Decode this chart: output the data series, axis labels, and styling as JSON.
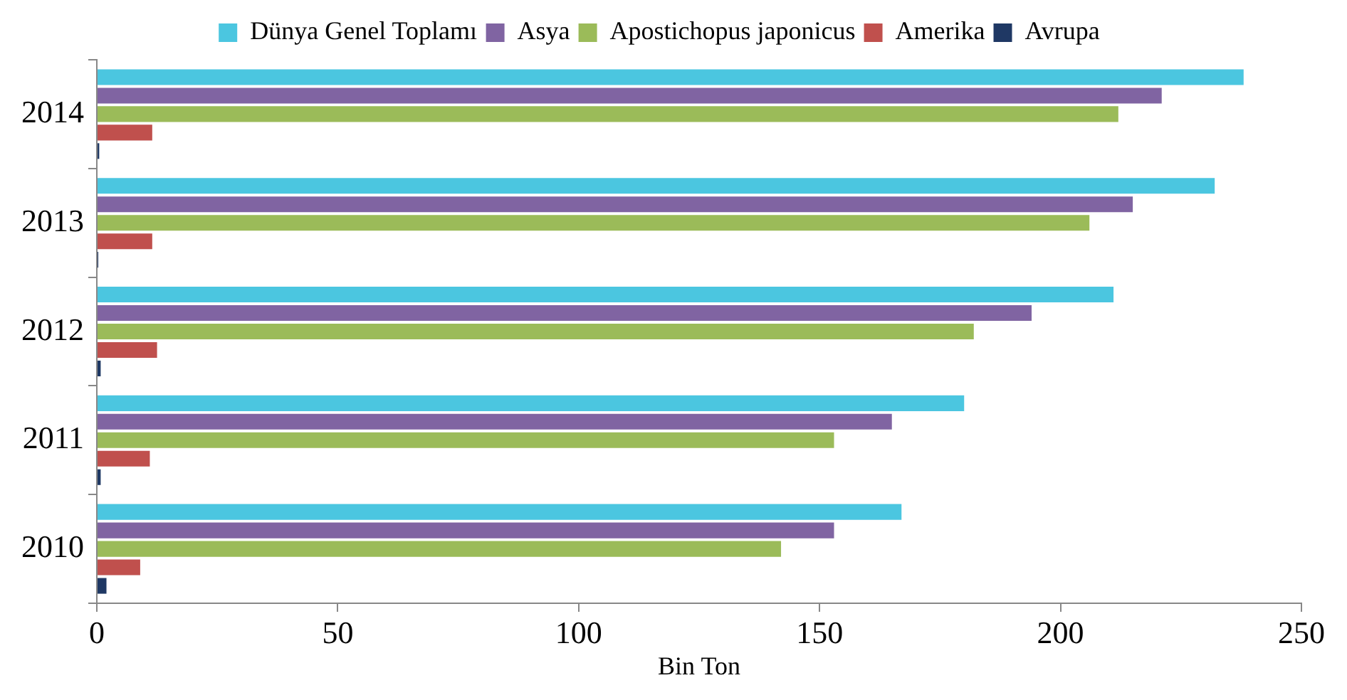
{
  "chart_data": {
    "type": "bar",
    "orientation": "horizontal",
    "xlabel": "Bin Ton",
    "categories": [
      "2014",
      "2013",
      "2012",
      "2011",
      "2010"
    ],
    "series": [
      {
        "name": "Dünya Genel Toplamı",
        "color": "#4bc6e0",
        "values": [
          238,
          232,
          211,
          180,
          167
        ]
      },
      {
        "name": "Asya",
        "color": "#8064a2",
        "values": [
          221,
          215,
          194,
          165,
          153
        ]
      },
      {
        "name": "Apostichopus japonicus",
        "color": "#9bbb59",
        "values": [
          212,
          206,
          182,
          153,
          142
        ]
      },
      {
        "name": "Amerika",
        "color": "#c0504d",
        "values": [
          11.5,
          11.5,
          12.5,
          11,
          9
        ]
      },
      {
        "name": "Avrupa",
        "color": "#1f3864",
        "values": [
          0.5,
          0.3,
          0.8,
          0.8,
          2
        ]
      }
    ],
    "xlim": [
      0,
      250
    ],
    "xticks": [
      0,
      50,
      100,
      150,
      200,
      250
    ],
    "grid": false,
    "legend": "top"
  }
}
